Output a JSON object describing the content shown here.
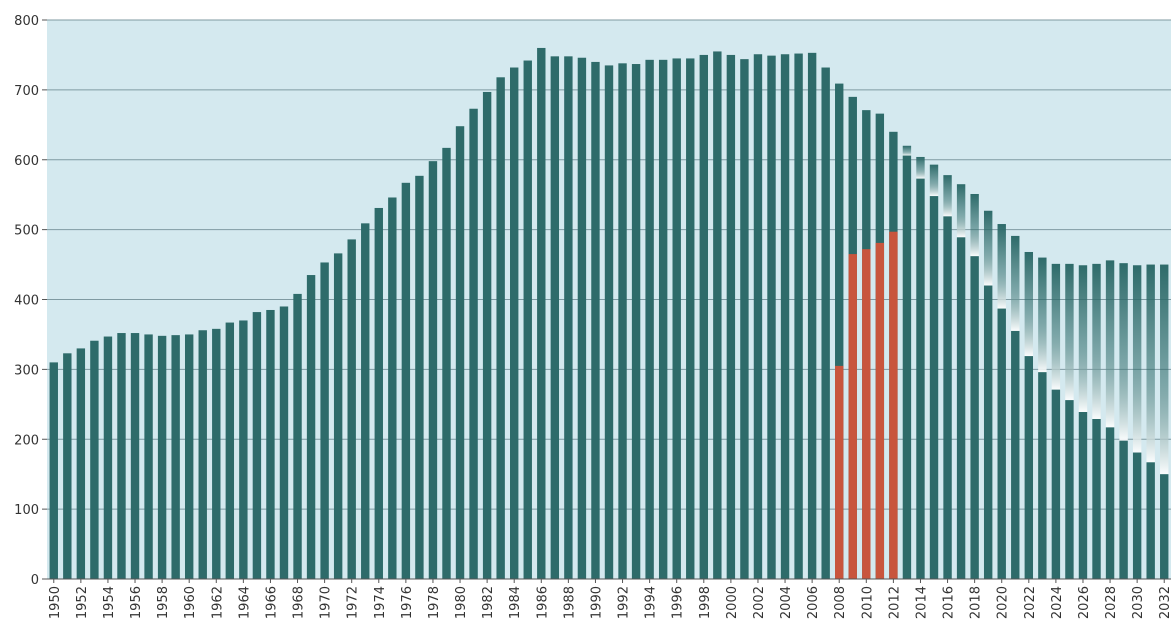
{
  "chart_data": {
    "type": "bar",
    "title": "",
    "xlabel": "",
    "ylabel": "",
    "ylim": [
      0,
      800
    ],
    "yticks": [
      0,
      100,
      200,
      300,
      400,
      500,
      600,
      700,
      800
    ],
    "grid": true,
    "colors": {
      "background": "#d4e9ef",
      "bar": "#2e6b6a",
      "highlight": "#c8553d",
      "grid": "#7f9aa2"
    },
    "categories": [
      "1950",
      "1951",
      "1952",
      "1953",
      "1954",
      "1955",
      "1956",
      "1957",
      "1958",
      "1959",
      "1960",
      "1961",
      "1962",
      "1963",
      "1964",
      "1965",
      "1966",
      "1967",
      "1968",
      "1969",
      "1970",
      "1971",
      "1972",
      "1973",
      "1974",
      "1975",
      "1976",
      "1977",
      "1978",
      "1979",
      "1980",
      "1981",
      "1982",
      "1983",
      "1984",
      "1985",
      "1986",
      "1987",
      "1988",
      "1989",
      "1990",
      "1991",
      "1992",
      "1993",
      "1994",
      "1995",
      "1996",
      "1997",
      "1998",
      "1999",
      "2000",
      "2001",
      "2002",
      "2003",
      "2004",
      "2005",
      "2006",
      "2007",
      "2008",
      "2009",
      "2010",
      "2011",
      "2012",
      "2013",
      "2014",
      "2015",
      "2016",
      "2017",
      "2018",
      "2019",
      "2020",
      "2021",
      "2022",
      "2023",
      "2024",
      "2025",
      "2026",
      "2027",
      "2028",
      "2029",
      "2030",
      "2031",
      "2032"
    ],
    "tick_labels": [
      "1950",
      "1952",
      "1954",
      "1956",
      "1958",
      "1960",
      "1962",
      "1964",
      "1966",
      "1968",
      "1970",
      "1972",
      "1974",
      "1976",
      "1978",
      "1980",
      "1982",
      "1984",
      "1986",
      "1988",
      "1990",
      "1992",
      "1994",
      "1996",
      "1998",
      "2000",
      "2002",
      "2004",
      "2006",
      "2008",
      "2010",
      "2012",
      "2014",
      "2016",
      "2018",
      "2020",
      "2022",
      "2024",
      "2026",
      "2028",
      "2030",
      "2032"
    ],
    "series": [
      {
        "values": [
          310,
          323,
          330,
          341,
          347,
          352,
          352,
          350,
          348,
          349,
          350,
          356,
          358,
          367,
          370,
          382,
          385,
          390,
          408,
          435,
          453,
          466,
          486,
          509,
          531,
          546,
          567,
          577,
          598,
          617,
          648,
          673,
          697,
          718,
          732,
          742,
          760,
          748,
          748,
          746,
          740,
          735,
          738,
          737,
          743,
          743,
          745,
          745,
          750,
          755,
          750,
          744,
          751,
          749,
          751,
          752,
          753,
          732,
          709,
          690,
          671,
          666,
          640,
          606,
          573,
          548,
          519,
          489,
          462,
          420,
          387,
          355,
          319,
          296,
          271,
          256,
          239,
          229,
          217,
          198,
          181,
          167,
          150
        ]
      },
      {
        "values": [
          null,
          null,
          null,
          null,
          null,
          null,
          null,
          null,
          null,
          null,
          null,
          null,
          null,
          null,
          null,
          null,
          null,
          null,
          null,
          null,
          null,
          null,
          null,
          null,
          null,
          null,
          null,
          null,
          null,
          null,
          null,
          null,
          null,
          null,
          null,
          null,
          null,
          null,
          null,
          null,
          null,
          null,
          null,
          null,
          null,
          null,
          null,
          null,
          null,
          null,
          null,
          null,
          null,
          null,
          null,
          null,
          null,
          null,
          305,
          465,
          472,
          481,
          497,
          null,
          null,
          null,
          null,
          null,
          null,
          null,
          null,
          null,
          null,
          null,
          null,
          null,
          null,
          null,
          null,
          null,
          null,
          null,
          null
        ]
      },
      {
        "values": [
          null,
          null,
          null,
          null,
          null,
          null,
          null,
          null,
          null,
          null,
          null,
          null,
          null,
          null,
          null,
          null,
          null,
          null,
          null,
          null,
          null,
          null,
          null,
          null,
          null,
          null,
          null,
          null,
          null,
          null,
          null,
          null,
          null,
          null,
          null,
          null,
          null,
          null,
          null,
          null,
          null,
          null,
          null,
          null,
          null,
          null,
          null,
          null,
          null,
          null,
          null,
          null,
          null,
          null,
          null,
          null,
          null,
          null,
          null,
          null,
          null,
          null,
          null,
          620,
          604,
          593,
          578,
          565,
          551,
          527,
          508,
          491,
          468,
          460,
          451,
          451,
          449,
          451,
          456,
          452,
          449,
          450,
          450
        ]
      }
    ]
  }
}
